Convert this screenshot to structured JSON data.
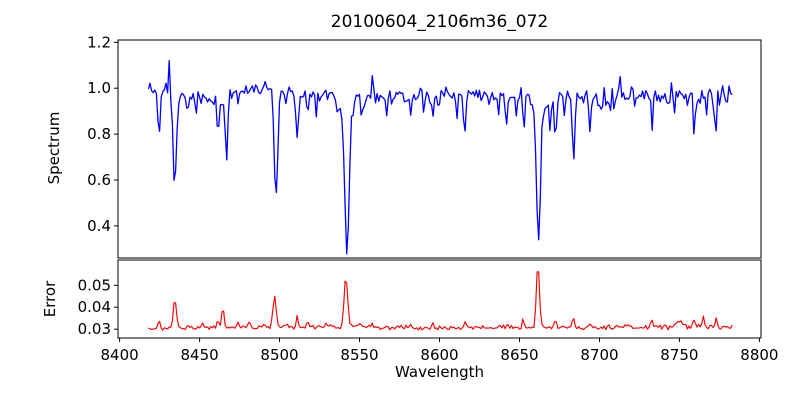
{
  "chart_data": [
    {
      "type": "line",
      "name": "spectrum",
      "title": "20100604_2106m36_072",
      "ylabel": "Spectrum",
      "line_color": "#0000ff",
      "axis_color": "#000000",
      "xlim": [
        8399,
        8801
      ],
      "ylim": [
        0.26,
        1.21
      ],
      "yticks": [
        0.4,
        0.6,
        0.8,
        1.0,
        1.2
      ],
      "ytick_labels": [
        "0.4",
        "0.6",
        "0.8",
        "1.0",
        "1.2"
      ],
      "xticks": [
        8400,
        8450,
        8500,
        8550,
        8600,
        8650,
        8700,
        8750,
        8800
      ],
      "xtick_labels": [
        "8400",
        "8450",
        "8500",
        "8550",
        "8600",
        "8650",
        "8700",
        "8750",
        "8800"
      ],
      "show_xtick_labels": false,
      "show_xtick_marks": false,
      "grid": false,
      "x_start": 8418,
      "x_end": 8783,
      "x_step": 1,
      "noise_seed": 20100604,
      "baseline": [
        [
          8418,
          0.99
        ],
        [
          8445,
          0.955
        ],
        [
          8462,
          0.95
        ],
        [
          8480,
          0.995
        ],
        [
          8497,
          1.0
        ],
        [
          8520,
          0.97
        ],
        [
          8545,
          0.96
        ],
        [
          8600,
          0.975
        ],
        [
          8650,
          0.97
        ],
        [
          8700,
          0.96
        ],
        [
          8745,
          0.97
        ],
        [
          8783,
          0.95
        ]
      ],
      "noise_sigma": [
        [
          8418,
          0.019
        ],
        [
          8490,
          0.017
        ],
        [
          8600,
          0.019
        ],
        [
          8690,
          0.021
        ],
        [
          8708,
          0.031
        ],
        [
          8783,
          0.031
        ]
      ],
      "features_format": "[center_wavelength_A, amplitude(+up/-absorption), gaussian_width_A]",
      "features": [
        [
          8424.6,
          -0.19,
          0.7
        ],
        [
          8430.8,
          0.17,
          0.5
        ],
        [
          8434.5,
          -0.4,
          1.0
        ],
        [
          8442.5,
          -0.07,
          0.6
        ],
        [
          8448.2,
          -0.06,
          0.5
        ],
        [
          8461.5,
          -0.14,
          0.6
        ],
        [
          8466.8,
          -0.27,
          0.7
        ],
        [
          8474,
          -0.07,
          0.5
        ],
        [
          8497.8,
          -0.49,
          1.1
        ],
        [
          8504,
          -0.08,
          0.6
        ],
        [
          8511,
          -0.2,
          0.7
        ],
        [
          8517.5,
          -0.12,
          0.6
        ],
        [
          8523,
          -0.08,
          0.5
        ],
        [
          8536,
          -0.07,
          0.5
        ],
        [
          8542.1,
          -0.57,
          1.3
        ],
        [
          8542,
          -0.09,
          3.5
        ],
        [
          8551.5,
          -0.1,
          0.6
        ],
        [
          8558.2,
          0.12,
          0.5
        ],
        [
          8567,
          -0.08,
          0.5
        ],
        [
          8582,
          -0.1,
          0.6
        ],
        [
          8590,
          -0.08,
          0.5
        ],
        [
          8595.8,
          -0.11,
          0.6
        ],
        [
          8611,
          -0.07,
          0.5
        ],
        [
          8615.8,
          -0.16,
          0.6
        ],
        [
          8637,
          -0.08,
          0.5
        ],
        [
          8642,
          -0.12,
          0.6
        ],
        [
          8648,
          -0.1,
          0.5
        ],
        [
          8652.7,
          -0.15,
          0.7
        ],
        [
          8661.8,
          -0.55,
          1.2
        ],
        [
          8662,
          -0.08,
          3.5
        ],
        [
          8669,
          -0.12,
          0.6
        ],
        [
          8672.5,
          -0.19,
          0.7
        ],
        [
          8678,
          -0.08,
          0.5
        ],
        [
          8683.8,
          -0.24,
          0.7
        ],
        [
          8694,
          -0.12,
          0.6
        ],
        [
          8713,
          0.1,
          0.5
        ],
        [
          8733,
          -0.13,
          0.6
        ],
        [
          8743,
          -0.1,
          0.5
        ],
        [
          8759,
          -0.13,
          0.6
        ],
        [
          8773,
          -0.12,
          0.6
        ]
      ]
    },
    {
      "type": "line",
      "name": "error",
      "ylabel": "Error",
      "xlabel": "Wavelength",
      "line_color": "#ff0000",
      "axis_color": "#000000",
      "xlim": [
        8399,
        8801
      ],
      "ylim": [
        0.026,
        0.0615
      ],
      "yticks": [
        0.03,
        0.04,
        0.05
      ],
      "ytick_labels": [
        "0.03",
        "0.04",
        "0.05"
      ],
      "xticks": [
        8400,
        8450,
        8500,
        8550,
        8600,
        8650,
        8700,
        8750,
        8800
      ],
      "xtick_labels": [
        "8400",
        "8450",
        "8500",
        "8550",
        "8600",
        "8650",
        "8700",
        "8750",
        "8800"
      ],
      "show_xtick_labels": true,
      "show_xtick_marks": true,
      "grid": false,
      "x_start": 8418,
      "x_end": 8783,
      "x_step": 1,
      "noise_seed": 2106072,
      "baseline": [
        [
          8418,
          0.03
        ],
        [
          8430,
          0.0306
        ],
        [
          8470,
          0.0308
        ],
        [
          8540,
          0.031
        ],
        [
          8600,
          0.0307
        ],
        [
          8660,
          0.0309
        ],
        [
          8700,
          0.0307
        ],
        [
          8745,
          0.0313
        ],
        [
          8783,
          0.031
        ]
      ],
      "noise_sigma": [
        [
          8418,
          0.00045
        ],
        [
          8690,
          0.0005
        ],
        [
          8783,
          0.00075
        ]
      ],
      "features_format": "[center_wavelength_A, amplitude(+up spike), gaussian_width_A]",
      "features": [
        [
          8424.6,
          0.0035,
          0.7
        ],
        [
          8434.5,
          0.0125,
          1.0
        ],
        [
          8443,
          0.0015,
          0.6
        ],
        [
          8452,
          0.002,
          0.6
        ],
        [
          8461.5,
          0.004,
          0.6
        ],
        [
          8464.5,
          0.009,
          0.7
        ],
        [
          8474,
          0.002,
          0.5
        ],
        [
          8481,
          0.003,
          0.7
        ],
        [
          8490,
          0.002,
          0.6
        ],
        [
          8496.8,
          0.0145,
          1.0
        ],
        [
          8504,
          0.002,
          0.6
        ],
        [
          8511,
          0.005,
          0.7
        ],
        [
          8517.5,
          0.0035,
          0.6
        ],
        [
          8529,
          0.0015,
          0.5
        ],
        [
          8541.5,
          0.0225,
          1.1
        ],
        [
          8551,
          0.002,
          0.6
        ],
        [
          8558,
          0.002,
          0.5
        ],
        [
          8582,
          0.0015,
          0.6
        ],
        [
          8596,
          0.002,
          0.6
        ],
        [
          8616,
          0.003,
          0.6
        ],
        [
          8642,
          0.002,
          0.6
        ],
        [
          8652,
          0.003,
          0.6
        ],
        [
          8661.5,
          0.0285,
          1.0
        ],
        [
          8672.5,
          0.004,
          0.7
        ],
        [
          8683.8,
          0.0045,
          0.7
        ],
        [
          8694,
          0.002,
          0.6
        ],
        [
          8733,
          0.002,
          0.6
        ],
        [
          8750,
          0.002,
          2.0
        ],
        [
          8759,
          0.003,
          0.8
        ],
        [
          8765,
          0.004,
          0.8
        ],
        [
          8773,
          0.003,
          0.7
        ]
      ]
    }
  ]
}
